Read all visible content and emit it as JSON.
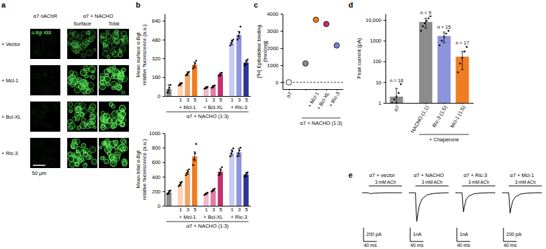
{
  "image_panel": {
    "panel_label": "a",
    "left_header": "α7 nAChR",
    "right_header": "α7 + NACHO",
    "column_headers": [
      "Surface",
      "Total"
    ],
    "stain_label": "α-Bgt 488",
    "row_labels": [
      "+ Vector",
      "+ Mcl-1",
      "+ Bcl-XL",
      "+ Ric-3"
    ],
    "scale_bar_label": "50 μm"
  },
  "chart_data": [
    {
      "type": "bar",
      "panel_label": "b",
      "ylabel": [
        "Mean surface α-Bgt",
        "relative fluorescence (a.u.)"
      ],
      "categories": [
        null,
        "1",
        "3",
        "5",
        "1",
        "3",
        "5",
        "1",
        "3",
        "5"
      ],
      "groups": [
        null,
        "+ Mcl-1",
        "+ Mcl-1",
        "+ Mcl-1",
        "+ Bcl-XL",
        "+ Bcl-XL",
        "+ Bcl-XL",
        "+ Ric-3",
        "+ Ric-3",
        "+ Ric-3"
      ],
      "xlabel": "α7 + NACHO (1:3)",
      "values": [
        60,
        100,
        190,
        265,
        70,
        80,
        185,
        455,
        520,
        285
      ],
      "errors": [
        35,
        12,
        15,
        25,
        8,
        10,
        12,
        20,
        30,
        20
      ],
      "points": [
        [
          30,
          50,
          70,
          95
        ],
        [
          90,
          100,
          105,
          110
        ],
        [
          175,
          185,
          195,
          205
        ],
        [
          235,
          255,
          275,
          300
        ],
        [
          62,
          68,
          72,
          78
        ],
        [
          70,
          78,
          84,
          90
        ],
        [
          172,
          182,
          190,
          198
        ],
        [
          430,
          450,
          465,
          480
        ],
        [
          480,
          510,
          540,
          590
        ],
        [
          260,
          275,
          295,
          310
        ]
      ],
      "colors": [
        "#8c8c8c",
        "#fbd3b4",
        "#f6a564",
        "#ef7d22",
        "#f2b8cf",
        "#e27aa6",
        "#c4306f",
        "#c8cbef",
        "#8d93dc",
        "#2f3590"
      ],
      "ylim": [
        0,
        700
      ],
      "yticks": [
        0,
        160,
        320,
        480,
        640
      ]
    },
    {
      "type": "bar",
      "ylabel": [
        "Mean total α-Bgt",
        "relative fluorescence (a.u.)"
      ],
      "categories": [
        null,
        "1",
        "3",
        "5",
        "1",
        "3",
        "5",
        "1",
        "3",
        "5"
      ],
      "groups": [
        null,
        "+ Mcl-1",
        "+ Mcl-1",
        "+ Mcl-1",
        "+ Bcl-XL",
        "+ Bcl-XL",
        "+ Bcl-XL",
        "+ Ric-3",
        "+ Ric-3",
        "+ Ric-3"
      ],
      "xlabel": "α7 + NACHO (1:3)",
      "values": [
        185,
        300,
        460,
        680,
        165,
        215,
        470,
        730,
        735,
        430
      ],
      "errors": [
        25,
        25,
        30,
        60,
        12,
        15,
        40,
        40,
        50,
        30
      ],
      "points": [
        [
          160,
          175,
          195,
          210
        ],
        [
          270,
          290,
          310,
          330
        ],
        [
          420,
          450,
          470,
          500
        ],
        [
          560,
          640,
          720,
          850
        ],
        [
          150,
          160,
          170,
          180
        ],
        [
          195,
          210,
          220,
          235
        ],
        [
          420,
          450,
          490,
          530
        ],
        [
          680,
          720,
          750,
          790
        ],
        [
          680,
          720,
          760,
          800
        ],
        [
          400,
          420,
          440,
          460
        ]
      ],
      "colors": [
        "#8c8c8c",
        "#fbd3b4",
        "#f6a564",
        "#ef7d22",
        "#f2b8cf",
        "#e27aa6",
        "#c4306f",
        "#c8cbef",
        "#8d93dc",
        "#2f3590"
      ],
      "ylim": [
        0,
        1000
      ],
      "yticks": [
        0,
        200,
        400,
        600,
        800,
        1000
      ]
    },
    {
      "type": "scatter",
      "panel_label": "c",
      "ylabel": [
        "[³H] Epibatidine binding",
        "(fmol/mg)"
      ],
      "categories": [
        "α7",
        null,
        "+ Mcl-1",
        "+ Bcl-XL",
        "+ Ric-3"
      ],
      "groups": [
        null,
        "α7 + NACHO (1:3)",
        "α7 + NACHO (1:3)",
        "α7 + NACHO (1:3)",
        "α7 + NACHO (1:3)"
      ],
      "values": [
        0,
        1100,
        3650,
        3400,
        2150
      ],
      "errors": [
        40,
        50,
        60,
        70,
        60
      ],
      "colors": [
        "#ffffff",
        "#8c8c8c",
        "#ef7d22",
        "#c4306f",
        "#7b82d6"
      ],
      "reference_line": 0,
      "line_style": "dashed",
      "ylim": [
        -400,
        4000
      ],
      "yticks": [
        0,
        1000,
        2000,
        3000,
        4000
      ]
    },
    {
      "type": "bar",
      "panel_label": "d",
      "log": "y",
      "ylabel": "Peak current (pA)",
      "categories": [
        "α7",
        "NACHO (1:1)",
        "Ric-3 (1:5)",
        "Mcl-1 (1:5)"
      ],
      "groups": [
        null,
        "+ Chaperone",
        "+ Chaperone",
        "+ Chaperone"
      ],
      "values": [
        2,
        8000,
        1700,
        170
      ],
      "errors": [
        3,
        4000,
        900,
        130
      ],
      "points": [
        [
          1,
          1.5,
          2,
          3,
          8
        ],
        [
          3000,
          5000,
          7000,
          9000,
          12000,
          15000
        ],
        [
          600,
          1000,
          1500,
          2200,
          3000
        ],
        [
          30,
          80,
          150,
          300,
          500
        ]
      ],
      "colors": [
        "#8c8c8c",
        "#8c8c8c",
        "#8d93dc",
        "#ef7d22"
      ],
      "bar_annotations": [
        "n = 16",
        "n = 9",
        "n = 15",
        "n = 17"
      ],
      "ylim": [
        1,
        20000
      ],
      "yticks": [
        1,
        10,
        100,
        1000,
        {
          "value": 10000,
          "label": "10,000"
        }
      ]
    },
    {
      "type": "line",
      "panel_label": "e",
      "tick_labels": false,
      "color": "#000000",
      "x": [
        0,
        10,
        20,
        22,
        24,
        27,
        32,
        40,
        55,
        75,
        100,
        120
      ],
      "xlim": [
        0,
        120
      ],
      "stimulus": [
        20,
        120
      ],
      "stimulus_label": "3 mM ACh",
      "series": [
        {
          "name": "α7 + vector",
          "values": [
            0,
            0,
            0,
            -10,
            -15,
            -12,
            -8,
            -5,
            -2,
            0,
            0,
            0
          ],
          "ylim": [
            -450,
            50
          ],
          "scale_bar_y": 200,
          "scale_bar_y_label": "200 pA",
          "scale_bar_x": 40,
          "scale_bar_x_label": "40 ms"
        },
        {
          "name": "α7 + NACHO",
          "values": [
            0,
            0,
            0,
            -1200,
            -2100,
            -1600,
            -900,
            -450,
            -150,
            -50,
            -10,
            0
          ],
          "ylim": [
            -2250,
            250
          ],
          "scale_bar_y": 1000,
          "scale_bar_y_label": "1nA",
          "scale_bar_x": 40,
          "scale_bar_x_label": "40 ms"
        },
        {
          "name": "α7 + Ric-3",
          "values": [
            0,
            0,
            0,
            -700,
            -1400,
            -1000,
            -500,
            -250,
            -80,
            -20,
            0,
            0
          ],
          "ylim": [
            -2250,
            250
          ],
          "scale_bar_y": 1000,
          "scale_bar_y_label": "1nA",
          "scale_bar_x": 40,
          "scale_bar_x_label": "40 ms"
        },
        {
          "name": "α7 + Mcl-1",
          "values": [
            0,
            0,
            0,
            -150,
            -300,
            -220,
            -120,
            -60,
            -20,
            -5,
            0,
            0
          ],
          "ylim": [
            -450,
            50
          ],
          "scale_bar_y": 200,
          "scale_bar_y_label": "200 pA",
          "scale_bar_x": 40,
          "scale_bar_x_label": "40 ms"
        }
      ]
    }
  ]
}
